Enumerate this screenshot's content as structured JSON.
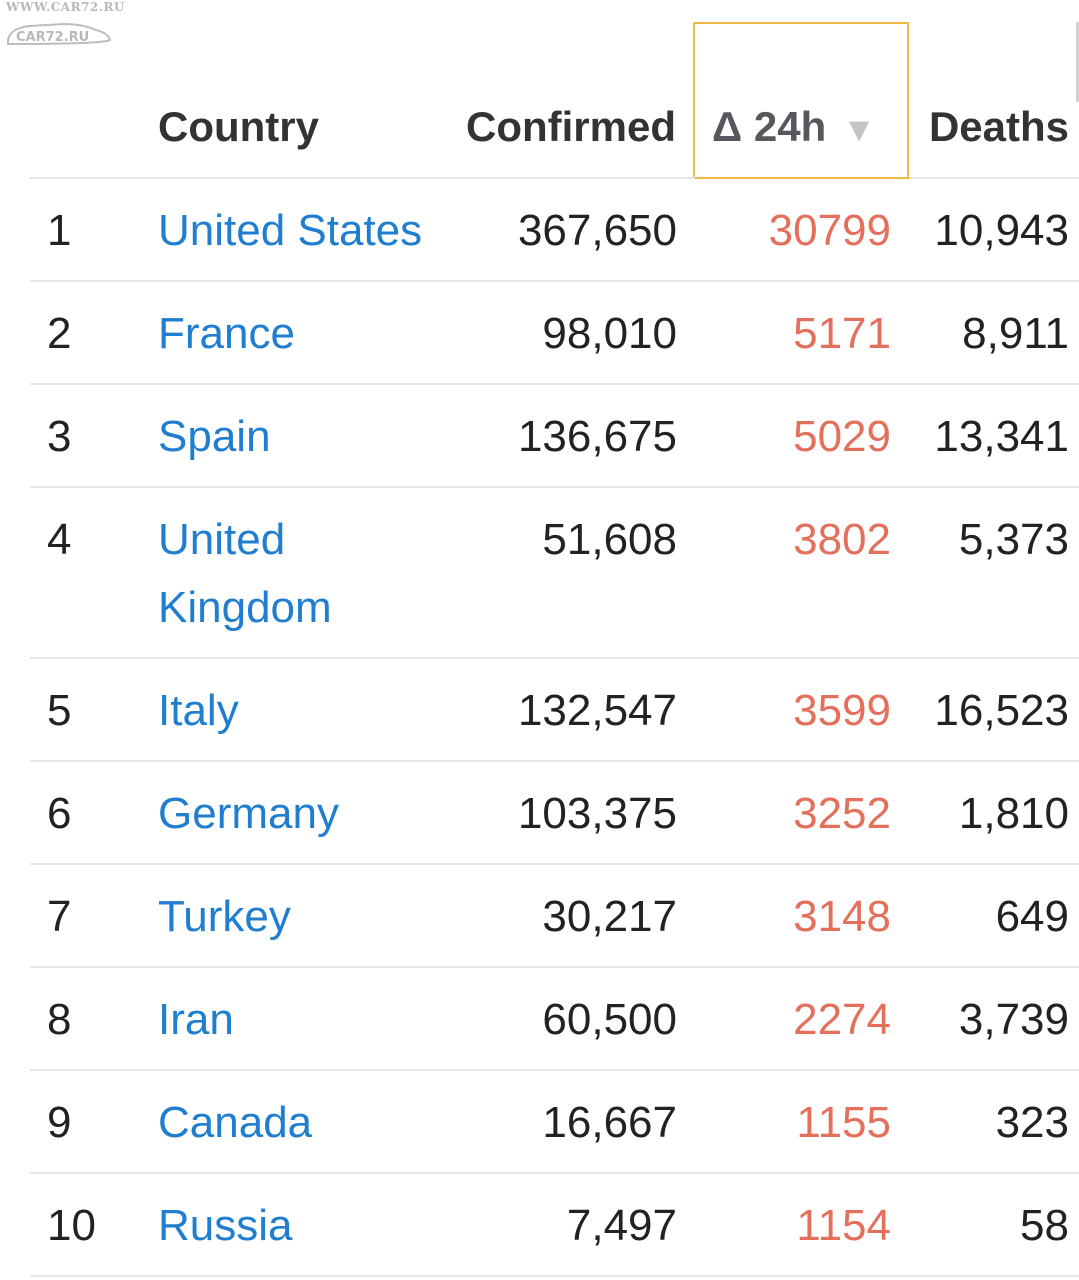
{
  "watermark": {
    "url": "WWW.CAR72.RU",
    "logo": "CAR72.RU"
  },
  "table": {
    "headers": {
      "country": "Country",
      "confirmed": "Confirmed",
      "delta": "Δ 24h",
      "deaths": "Deaths"
    },
    "sort_icon": "triangle-down-icon",
    "colors": {
      "link": "#1f7ecf",
      "delta": "#e4705c",
      "active_header_border": "#f0b945"
    },
    "rows": [
      {
        "rank": "1",
        "country": "United States",
        "confirmed": "367,650",
        "delta": "30799",
        "deaths": "10,943"
      },
      {
        "rank": "2",
        "country": "France",
        "confirmed": "98,010",
        "delta": "5171",
        "deaths": "8,911"
      },
      {
        "rank": "3",
        "country": "Spain",
        "confirmed": "136,675",
        "delta": "5029",
        "deaths": "13,341"
      },
      {
        "rank": "4",
        "country": "United Kingdom",
        "confirmed": "51,608",
        "delta": "3802",
        "deaths": "5,373"
      },
      {
        "rank": "5",
        "country": "Italy",
        "confirmed": "132,547",
        "delta": "3599",
        "deaths": "16,523"
      },
      {
        "rank": "6",
        "country": "Germany",
        "confirmed": "103,375",
        "delta": "3252",
        "deaths": "1,810"
      },
      {
        "rank": "7",
        "country": "Turkey",
        "confirmed": "30,217",
        "delta": "3148",
        "deaths": "649"
      },
      {
        "rank": "8",
        "country": "Iran",
        "confirmed": "60,500",
        "delta": "2274",
        "deaths": "3,739"
      },
      {
        "rank": "9",
        "country": "Canada",
        "confirmed": "16,667",
        "delta": "1155",
        "deaths": "323"
      },
      {
        "rank": "10",
        "country": "Russia",
        "confirmed": "7,497",
        "delta": "1154",
        "deaths": "58"
      }
    ]
  }
}
